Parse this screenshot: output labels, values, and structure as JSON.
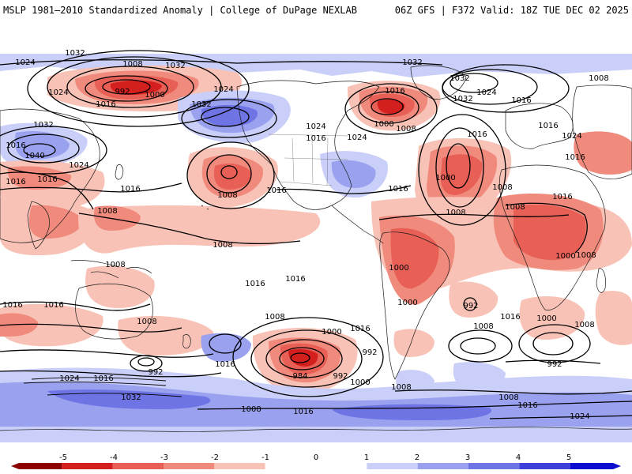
{
  "header": {
    "left_title": "MSLP 1981–2010 Standardized Anomaly | College of DuPage NEXLAB",
    "right_title": "06Z GFS | F372 Valid: 18Z TUE DEC 02 2025"
  },
  "colors": {
    "neg5": "#8b0000",
    "neg4": "#d41f1f",
    "neg3": "#e75f55",
    "neg2": "#f08a7c",
    "neg1": "#f9c2b6",
    "zero": "#ffffff",
    "pos1": "#c9cff8",
    "pos2": "#9aa2ef",
    "pos3": "#6e74e4",
    "pos4": "#3f3fd9",
    "pos5": "#0d0dd0"
  },
  "colorbar": {
    "ticks": [
      "-5",
      "-4",
      "-3",
      "-2",
      "-1",
      "0",
      "1",
      "2",
      "3",
      "4",
      "5"
    ]
  },
  "pressure_labels": [
    {
      "id": "p1",
      "text": "1024"
    },
    {
      "id": "p2",
      "text": "1032"
    },
    {
      "id": "p3",
      "text": "1008"
    },
    {
      "id": "p4",
      "text": "992"
    },
    {
      "id": "p5",
      "text": "1000"
    },
    {
      "id": "p6",
      "text": "1024"
    },
    {
      "id": "p7",
      "text": "1016"
    },
    {
      "id": "p8",
      "text": "1032"
    },
    {
      "id": "p9",
      "text": "1024"
    },
    {
      "id": "p10",
      "text": "1032"
    },
    {
      "id": "p11",
      "text": "1040"
    },
    {
      "id": "p12",
      "text": "1032"
    },
    {
      "id": "p13",
      "text": "1024"
    },
    {
      "id": "p14",
      "text": "1016"
    },
    {
      "id": "p15",
      "text": "1016"
    },
    {
      "id": "p16",
      "text": "1008"
    },
    {
      "id": "p17",
      "text": "1016"
    },
    {
      "id": "p18",
      "text": "1008"
    },
    {
      "id": "p19",
      "text": "1008"
    },
    {
      "id": "p20",
      "text": "1032"
    },
    {
      "id": "p21",
      "text": "1024"
    },
    {
      "id": "p22",
      "text": "1032"
    },
    {
      "id": "p23",
      "text": "1016"
    },
    {
      "id": "p24",
      "text": "1016"
    },
    {
      "id": "p25",
      "text": "1024"
    },
    {
      "id": "p26",
      "text": "1032"
    },
    {
      "id": "p27",
      "text": "1008"
    },
    {
      "id": "p28",
      "text": "1016"
    },
    {
      "id": "p29",
      "text": "1000"
    },
    {
      "id": "p30",
      "text": "1008"
    },
    {
      "id": "p31",
      "text": "1024"
    },
    {
      "id": "p32",
      "text": "1016"
    },
    {
      "id": "p33",
      "text": "1016"
    },
    {
      "id": "p34",
      "text": "1024"
    },
    {
      "id": "p35",
      "text": "1016"
    },
    {
      "id": "p36",
      "text": "1000"
    },
    {
      "id": "p37",
      "text": "1016"
    },
    {
      "id": "p38",
      "text": "1008"
    },
    {
      "id": "p39",
      "text": "1016"
    },
    {
      "id": "p40",
      "text": "1008"
    },
    {
      "id": "p41",
      "text": "1008"
    },
    {
      "id": "p42",
      "text": "1016"
    },
    {
      "id": "p43",
      "text": "1016"
    },
    {
      "id": "p44",
      "text": "1008"
    },
    {
      "id": "p45",
      "text": "1016"
    },
    {
      "id": "p46",
      "text": "1000"
    },
    {
      "id": "p47",
      "text": "1008"
    },
    {
      "id": "p48",
      "text": "1000"
    },
    {
      "id": "p49",
      "text": "1016"
    },
    {
      "id": "p50",
      "text": "1000"
    },
    {
      "id": "p51",
      "text": "1016"
    },
    {
      "id": "p52",
      "text": "992"
    },
    {
      "id": "p53",
      "text": "1016"
    },
    {
      "id": "p54",
      "text": "1008"
    },
    {
      "id": "p55",
      "text": "1016"
    },
    {
      "id": "p56",
      "text": "992"
    },
    {
      "id": "p57",
      "text": "1000"
    },
    {
      "id": "p58",
      "text": "992"
    },
    {
      "id": "p59",
      "text": "1024"
    },
    {
      "id": "p60",
      "text": "1016"
    },
    {
      "id": "p61",
      "text": "1008"
    },
    {
      "id": "p62",
      "text": "1032"
    },
    {
      "id": "p63",
      "text": "1016"
    },
    {
      "id": "p64",
      "text": "984"
    },
    {
      "id": "p65",
      "text": "992"
    },
    {
      "id": "p66",
      "text": "1000"
    },
    {
      "id": "p67",
      "text": "1008"
    },
    {
      "id": "p68",
      "text": "1008"
    },
    {
      "id": "p69",
      "text": "1016"
    },
    {
      "id": "p70",
      "text": "1016"
    },
    {
      "id": "p71",
      "text": "1000"
    },
    {
      "id": "p72",
      "text": "1008"
    },
    {
      "id": "p73",
      "text": "1008"
    },
    {
      "id": "p74",
      "text": "992"
    },
    {
      "id": "p75",
      "text": "1008"
    },
    {
      "id": "p76",
      "text": "1016"
    },
    {
      "id": "p77",
      "text": "1024"
    }
  ]
}
